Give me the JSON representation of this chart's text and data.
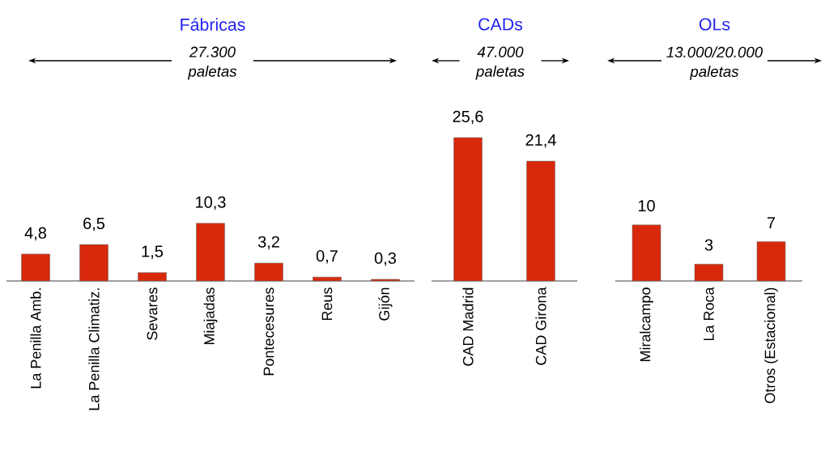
{
  "chart_data": [
    {
      "type": "bar",
      "title": "Fábricas",
      "subtitle": "27.300 paletas",
      "categories": [
        "La Penilla Amb.",
        "La Penilla Climatiz.",
        "Sevares",
        "Miajadas",
        "Pontecesures",
        "Reus",
        "Gijón"
      ],
      "values": [
        4.8,
        6.5,
        1.5,
        10.3,
        3.2,
        0.7,
        0.3
      ],
      "value_labels": [
        "4,8",
        "6,5",
        "1,5",
        "10,3",
        "3,2",
        "0,7",
        "0,3"
      ],
      "color": "#d8290c"
    },
    {
      "type": "bar",
      "title": "CADs",
      "subtitle": "47.000 paletas",
      "categories": [
        "CAD Madrid",
        "CAD Girona"
      ],
      "values": [
        25.6,
        21.4
      ],
      "value_labels": [
        "25,6",
        "21,4"
      ],
      "color": "#d8290c"
    },
    {
      "type": "bar",
      "title": "OLs",
      "subtitle": "13.000/20.000 paletas",
      "categories": [
        "Miralcampo",
        "La Roca",
        "Otros (Estacional)"
      ],
      "values": [
        10,
        3,
        7
      ],
      "value_labels": [
        "10",
        "3",
        "7"
      ],
      "color": "#d8290c"
    }
  ]
}
